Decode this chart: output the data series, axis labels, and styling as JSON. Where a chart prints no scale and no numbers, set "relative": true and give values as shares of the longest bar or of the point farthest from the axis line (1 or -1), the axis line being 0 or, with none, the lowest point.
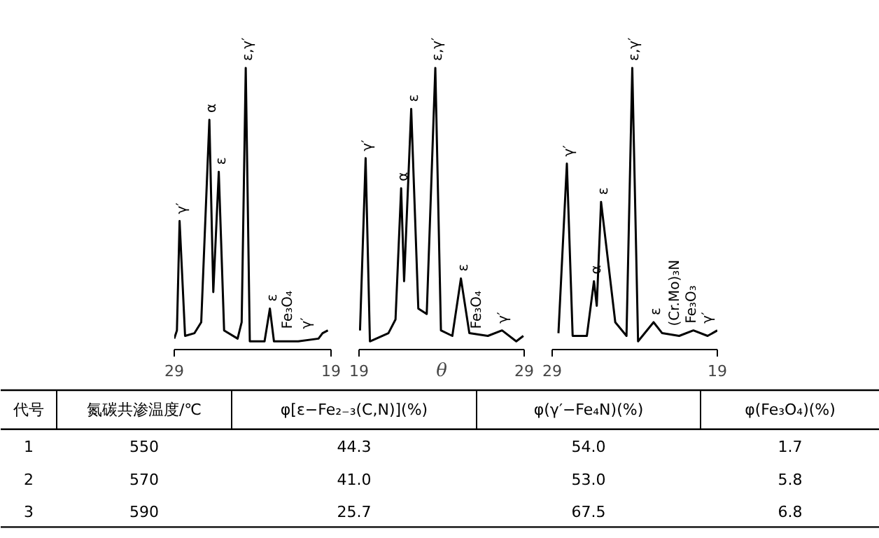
{
  "chart_data": [
    {
      "type": "line",
      "relative": true,
      "x": [
        29,
        28.83,
        28.66,
        28.31,
        27.71,
        27.28,
        26.76,
        26.51,
        26.16,
        25.82,
        24.96,
        24.7,
        24.44,
        24.18,
        23.24,
        22.9,
        22.64,
        21.09,
        19.8,
        19.54,
        19.2
      ],
      "series": [
        {
          "color": "#000000",
          "values": [
            0.01,
            0.04,
            0.44,
            0.02,
            0.03,
            0.07,
            0.81,
            0.18,
            0.62,
            0.04,
            0.01,
            0.07,
            1.0,
            0,
            0,
            0.12,
            0,
            0,
            0.01,
            0.03,
            0.04
          ]
        }
      ],
      "xlim": [
        29,
        19
      ],
      "xticks": [
        29,
        19
      ],
      "grid": false,
      "marker": "none",
      "line_style": "solid",
      "annotations": [
        {
          "text": "γ′",
          "x": 28.66,
          "y": 0.44
        },
        {
          "text": "α",
          "x": 26.76,
          "y": 0.81
        },
        {
          "text": "ε",
          "x": 26.16,
          "y": 0.62
        },
        {
          "text": "ε,γ′",
          "x": 24.44,
          "y": 1.0
        },
        {
          "text": "ε",
          "x": 22.9,
          "y": 0.12
        },
        {
          "text": "Fe₃O₄",
          "x": 21.9,
          "y": 0.02
        },
        {
          "text": "γ′",
          "x": 20.7,
          "y": 0.02
        }
      ]
    },
    {
      "type": "line",
      "relative": true,
      "xlabel": "θ",
      "x": [
        19.06,
        19.4,
        19.66,
        20.78,
        21.21,
        21.55,
        21.73,
        22.16,
        22.59,
        23.1,
        23.62,
        23.96,
        24.65,
        25.17,
        25.68,
        26.8,
        27.66,
        28.52,
        28.95
      ],
      "series": [
        {
          "color": "#000000",
          "values": [
            0.04,
            0.67,
            0,
            0.03,
            0.08,
            0.56,
            0.22,
            0.85,
            0.12,
            0.1,
            1.0,
            0.04,
            0.02,
            0.23,
            0.03,
            0.02,
            0.04,
            0,
            0.02
          ]
        }
      ],
      "xlim": [
        19,
        29
      ],
      "xticks": [
        19,
        29
      ],
      "grid": false,
      "marker": "none",
      "line_style": "solid",
      "annotations": [
        {
          "text": "γ′",
          "x": 19.4,
          "y": 0.67
        },
        {
          "text": "α",
          "x": 21.55,
          "y": 0.56
        },
        {
          "text": "ε",
          "x": 22.16,
          "y": 0.85
        },
        {
          "text": "ε,γ′",
          "x": 23.62,
          "y": 1.0
        },
        {
          "text": "ε",
          "x": 25.17,
          "y": 0.23
        },
        {
          "text": "Fe₃O₄",
          "x": 26.0,
          "y": 0.02
        },
        {
          "text": "γ′",
          "x": 27.6,
          "y": 0.04
        }
      ]
    },
    {
      "type": "line",
      "relative": true,
      "x": [
        28.62,
        28.11,
        27.76,
        26.9,
        26.47,
        26.3,
        26.04,
        25.18,
        24.5,
        24.15,
        23.8,
        22.86,
        22.34,
        21.31,
        20.45,
        19.59,
        19
      ],
      "series": [
        {
          "color": "#000000",
          "values": [
            0.03,
            0.65,
            0.02,
            0.02,
            0.22,
            0.13,
            0.51,
            0.07,
            0.02,
            1.0,
            0,
            0.07,
            0.03,
            0.02,
            0.04,
            0.02,
            0.04
          ]
        }
      ],
      "xlim": [
        29,
        19
      ],
      "xticks": [
        29,
        19
      ],
      "grid": false,
      "marker": "none",
      "line_style": "solid",
      "annotations": [
        {
          "text": "γ′",
          "x": 28.11,
          "y": 0.65
        },
        {
          "text": "α",
          "x": 26.47,
          "y": 0.22
        },
        {
          "text": "ε",
          "x": 26.04,
          "y": 0.51
        },
        {
          "text": "ε,γ′",
          "x": 24.15,
          "y": 1.0
        },
        {
          "text": "ε",
          "x": 22.86,
          "y": 0.07
        },
        {
          "text": "(Cr.Mo)₃N",
          "x": 21.7,
          "y": 0.03
        },
        {
          "text": "Fe₃O₃",
          "x": 20.7,
          "y": 0.04
        },
        {
          "text": "γ′",
          "x": 19.7,
          "y": 0.04
        }
      ]
    },
    {
      "type": "other",
      "annotations": [
        "代号",
        "氮碳共渗温度/℃",
        "φ[ε−Fe₂₋₃(C,N)](%)",
        "φ(γ′−Fe₄N)(%)",
        "φ(Fe₃O₄)(%)",
        "1",
        "550",
        "44.3",
        "54.0",
        "1.7",
        "2",
        "570",
        "41.0",
        "53.0",
        "5.8",
        "3",
        "590",
        "25.7",
        "67.5",
        "6.8"
      ]
    }
  ]
}
